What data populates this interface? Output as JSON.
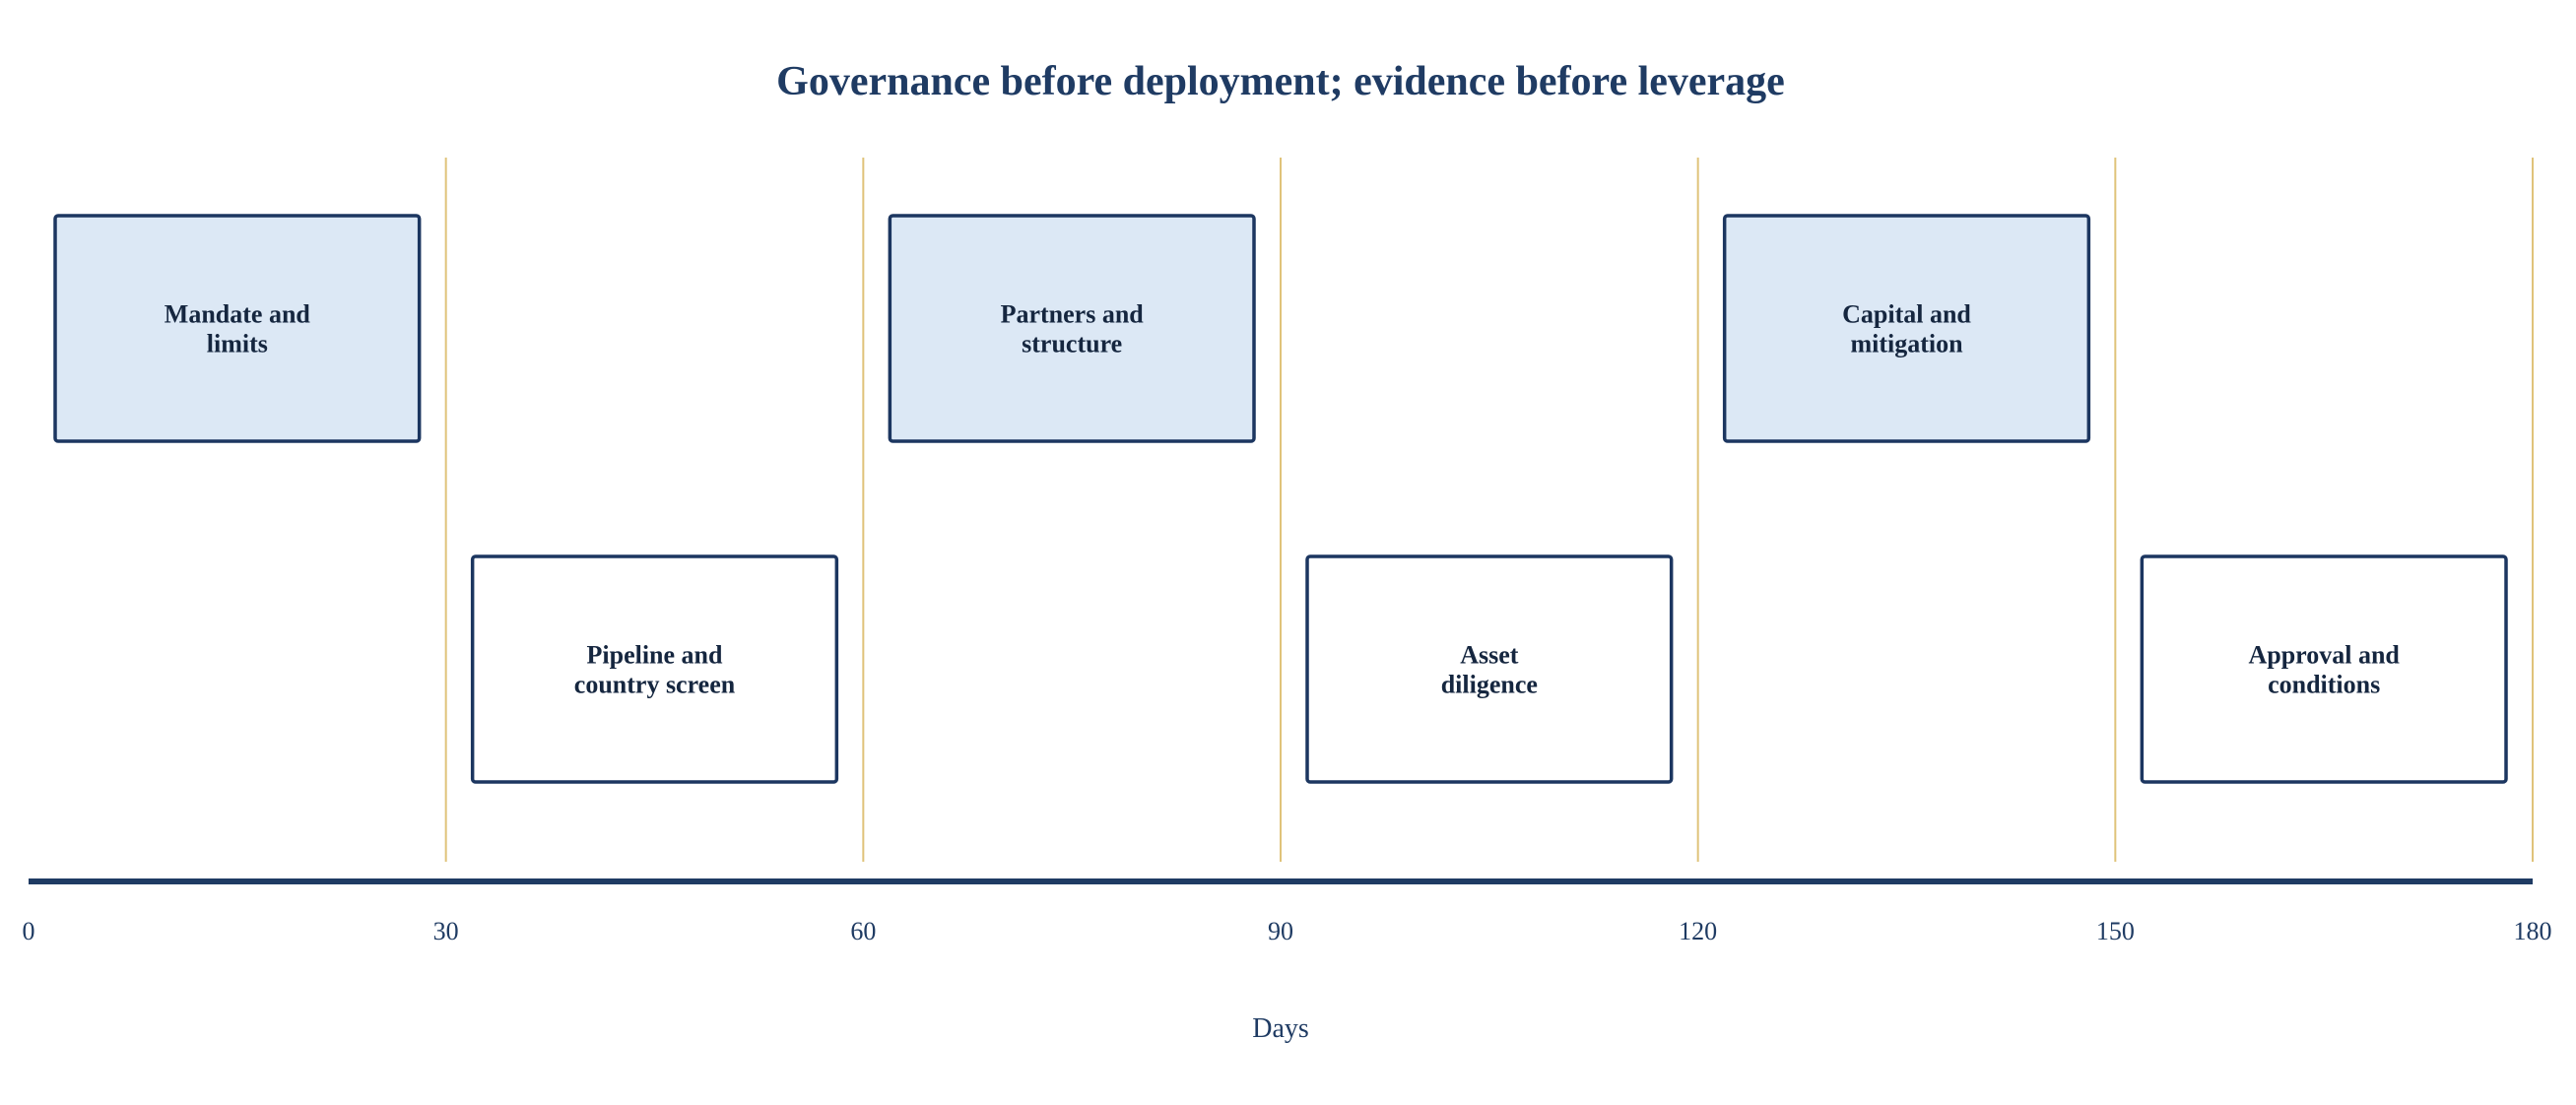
{
  "chart_data": {
    "type": "timeline",
    "title": "Governance before deployment; evidence before leverage",
    "xlabel": "Days",
    "xlim": [
      0,
      180
    ],
    "ticks": [
      0,
      30,
      60,
      90,
      120,
      150,
      180
    ],
    "dividers": [
      30,
      60,
      90,
      120,
      150,
      180
    ],
    "phases": [
      {
        "lines": [
          "Mandate and",
          "limits"
        ],
        "start": 0,
        "end": 30,
        "lane": "upper",
        "style": "filled"
      },
      {
        "lines": [
          "Pipeline and",
          "country screen"
        ],
        "start": 30,
        "end": 60,
        "lane": "lower",
        "style": "outline"
      },
      {
        "lines": [
          "Partners and",
          "structure"
        ],
        "start": 60,
        "end": 90,
        "lane": "upper",
        "style": "filled"
      },
      {
        "lines": [
          "Asset",
          "diligence"
        ],
        "start": 90,
        "end": 120,
        "lane": "lower",
        "style": "outline"
      },
      {
        "lines": [
          "Capital and",
          "mitigation"
        ],
        "start": 120,
        "end": 150,
        "lane": "upper",
        "style": "filled"
      },
      {
        "lines": [
          "Approval and",
          "conditions"
        ],
        "start": 150,
        "end": 180,
        "lane": "lower",
        "style": "outline"
      }
    ],
    "colors": {
      "title": "#1f3b63",
      "axis": "#1f3b63",
      "box_stroke": "#1c3660",
      "box_fill_filled": "#dce8f5",
      "box_fill_outline": "#ffffff",
      "divider": "#e0c37a",
      "label": "#15263f"
    }
  }
}
